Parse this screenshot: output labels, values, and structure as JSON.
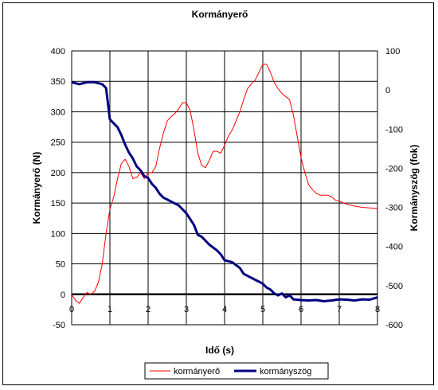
{
  "chart_data": {
    "type": "line",
    "title": "Kormányerő",
    "xlabel": "Idő (s)",
    "ylabel_left": "Kormányerő (N)",
    "ylabel_right": "Kormányszög (fok)",
    "xlim": [
      0,
      8
    ],
    "ylim_left": [
      -50,
      400
    ],
    "ylim_right": [
      -600,
      100
    ],
    "x_ticks": [
      "0",
      "1",
      "2",
      "3",
      "4",
      "5",
      "6",
      "7",
      "8"
    ],
    "y_ticks_left": [
      "-50",
      "0",
      "50",
      "100",
      "150",
      "200",
      "250",
      "300",
      "350",
      "400"
    ],
    "y_ticks_right": [
      "-600",
      "-500",
      "-400",
      "-300",
      "-200",
      "-100",
      "0",
      "100"
    ],
    "grid": true,
    "legend_position": "bottom",
    "series": [
      {
        "name": "kormányerő",
        "axis": "left",
        "color": "#ff0000",
        "x": [
          0,
          0.1,
          0.2,
          0.3,
          0.4,
          0.5,
          0.6,
          0.7,
          0.8,
          0.9,
          1.0,
          1.1,
          1.2,
          1.3,
          1.4,
          1.5,
          1.6,
          1.7,
          1.8,
          1.9,
          2.0,
          2.1,
          2.2,
          2.3,
          2.4,
          2.5,
          2.6,
          2.7,
          2.8,
          2.9,
          3.0,
          3.1,
          3.2,
          3.3,
          3.4,
          3.5,
          3.6,
          3.7,
          3.8,
          3.9,
          4.0,
          4.1,
          4.2,
          4.3,
          4.4,
          4.5,
          4.6,
          4.7,
          4.8,
          4.9,
          5.0,
          5.1,
          5.2,
          5.3,
          5.4,
          5.5,
          5.6,
          5.7,
          5.8,
          5.9,
          6.0,
          6.1,
          6.2,
          6.3,
          6.4,
          6.5,
          6.6,
          6.7,
          6.8,
          6.9,
          7.0,
          7.2,
          7.4,
          7.6,
          7.8,
          8.0
        ],
        "values": [
          0,
          -10,
          -15,
          -5,
          3,
          0,
          5,
          20,
          50,
          100,
          140,
          160,
          190,
          215,
          222,
          210,
          190,
          192,
          200,
          190,
          200,
          200,
          210,
          240,
          265,
          285,
          292,
          297,
          305,
          315,
          315,
          302,
          270,
          232,
          212,
          208,
          220,
          235,
          235,
          232,
          245,
          260,
          270,
          285,
          300,
          320,
          338,
          346,
          352,
          365,
          378,
          378,
          365,
          348,
          338,
          330,
          325,
          320,
          295,
          260,
          225,
          200,
          180,
          172,
          166,
          163,
          163,
          163,
          160,
          155,
          153,
          148,
          145,
          143,
          142,
          141
        ]
      },
      {
        "name": "kormányszög",
        "axis": "right",
        "color": "#000080",
        "x": [
          0,
          0.2,
          0.4,
          0.6,
          0.8,
          0.9,
          1.0,
          1.1,
          1.2,
          1.3,
          1.4,
          1.5,
          1.6,
          1.7,
          1.8,
          1.9,
          2.0,
          2.1,
          2.2,
          2.3,
          2.4,
          2.5,
          2.6,
          2.8,
          3.0,
          3.1,
          3.2,
          3.3,
          3.4,
          3.6,
          3.8,
          3.9,
          4.0,
          4.2,
          4.4,
          4.5,
          4.6,
          4.8,
          4.9,
          5.0,
          5.1,
          5.2,
          5.3,
          5.4,
          5.5,
          5.6,
          5.7,
          5.8,
          6.0,
          6.2,
          6.4,
          6.6,
          6.8,
          7.0,
          7.2,
          7.4,
          7.6,
          7.8,
          8.0
        ],
        "values": [
          20,
          15,
          20,
          20,
          15,
          5,
          -75,
          -85,
          -95,
          -115,
          -140,
          -160,
          -175,
          -195,
          -205,
          -220,
          -225,
          -240,
          -250,
          -265,
          -275,
          -280,
          -285,
          -295,
          -315,
          -330,
          -345,
          -370,
          -375,
          -395,
          -410,
          -420,
          -435,
          -440,
          -455,
          -470,
          -475,
          -485,
          -490,
          -495,
          -505,
          -510,
          -520,
          -525,
          -520,
          -530,
          -525,
          -535,
          -537,
          -538,
          -537,
          -540,
          -538,
          -535,
          -536,
          -538,
          -535,
          -536,
          -530
        ]
      }
    ]
  }
}
